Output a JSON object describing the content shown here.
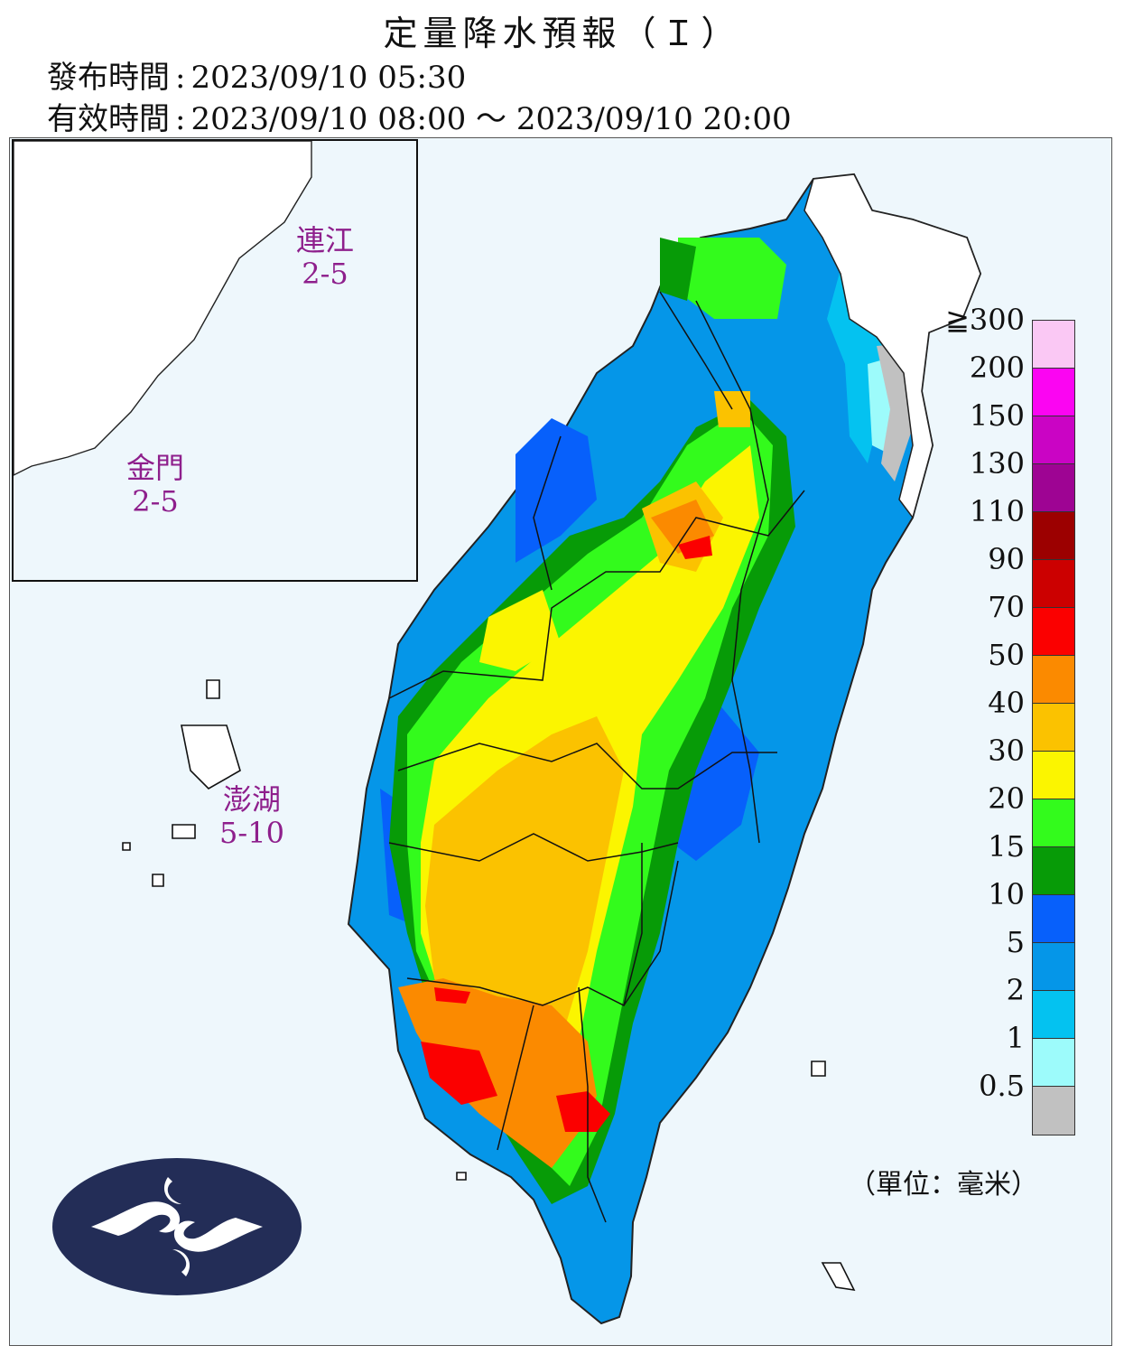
{
  "title": "定量降水預報（Ｉ）",
  "issue": {
    "label": "發布時間",
    "value": "2023/09/10 05:30"
  },
  "valid": {
    "label": "有效時間",
    "value": "2023/09/10 08:00 ～ 2023/09/10 20:00"
  },
  "islands": [
    {
      "name": "連江",
      "range": "2-5"
    },
    {
      "name": "金門",
      "range": "2-5"
    },
    {
      "name": "澎湖",
      "range": "5-10"
    }
  ],
  "legend": {
    "unit": "（單位：毫米）",
    "top_label": "≧300",
    "ticks": [
      "300",
      "200",
      "150",
      "130",
      "110",
      "90",
      "70",
      "50",
      "40",
      "30",
      "20",
      "15",
      "10",
      "5",
      "2",
      "1",
      "0.5"
    ],
    "colors": [
      "#fac8f4",
      "#fb05f2",
      "#ca04c4",
      "#9e0493",
      "#9c0000",
      "#cc0000",
      "#fb0000",
      "#fb8a00",
      "#fbc200",
      "#fbf500",
      "#33fb1c",
      "#079b07",
      "#0760fb",
      "#0596e8",
      "#04c2f0",
      "#9dfbfb",
      "#c1c1c1"
    ]
  },
  "logo": {
    "name": "cwb-logo"
  }
}
